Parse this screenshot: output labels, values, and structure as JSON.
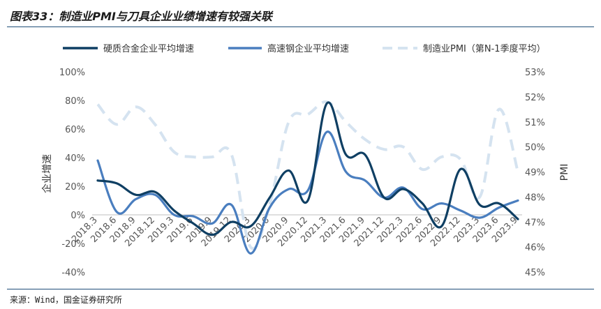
{
  "title": "图表33：制造业PMI与刀具企业业绩增速有较强关联",
  "source": "来源：Wind，国金证券研究所",
  "chart_data": {
    "type": "line",
    "categories": [
      "2018.3",
      "2018.6",
      "2018.9",
      "2018.12",
      "2019.3",
      "2019.6",
      "2019.9",
      "2019.12",
      "2020.3",
      "2020.6",
      "2020.9",
      "2020.12",
      "2021.3",
      "2021.6",
      "2021.9",
      "2021.12",
      "2022.3",
      "2022.6",
      "2022.9",
      "2022.12",
      "2023.3",
      "2023.6",
      "2023.9"
    ],
    "ylabel_left": "企业增速",
    "ylabel_right": "PMI",
    "ylim_left": [
      -40,
      100
    ],
    "ylim_right": [
      45,
      53
    ],
    "yticks_left": [
      "100%",
      "80%",
      "60%",
      "40%",
      "20%",
      "0%",
      "-20%",
      "-40%"
    ],
    "yticks_right": [
      "53%",
      "52%",
      "51%",
      "50%",
      "49%",
      "48%",
      "47%",
      "46%",
      "45%"
    ],
    "legend_position": "top",
    "series": [
      {
        "name": "硬质合金企业平均增速",
        "axis": "left",
        "color": "#0f3f63",
        "dash": "none",
        "values": [
          24,
          22,
          14,
          16,
          3,
          -6,
          -14,
          -5,
          -8,
          12,
          31,
          10,
          78,
          42,
          42,
          12,
          18,
          8,
          -8,
          32,
          7,
          8,
          -3
        ]
      },
      {
        "name": "高速钢企业平均增速",
        "axis": "left",
        "color": "#4a7ebf",
        "dash": "none",
        "values": [
          38,
          2,
          11,
          14,
          0,
          -1,
          -6,
          7,
          -27,
          5,
          18,
          17,
          58,
          30,
          24,
          12,
          19,
          4,
          8,
          3,
          -2,
          5,
          10
        ]
      },
      {
        "name": "制造业PMI（第N-1季度平均）",
        "axis": "right",
        "color": "#d5e3f0",
        "dash": "16,10",
        "values": [
          51.7,
          50.9,
          51.6,
          50.9,
          49.8,
          49.6,
          49.6,
          49.7,
          46.0,
          47.7,
          51.0,
          51.3,
          51.8,
          51.0,
          50.3,
          49.9,
          50.0,
          49.1,
          49.6,
          49.5,
          48.0,
          51.5,
          49.0
        ]
      }
    ]
  }
}
